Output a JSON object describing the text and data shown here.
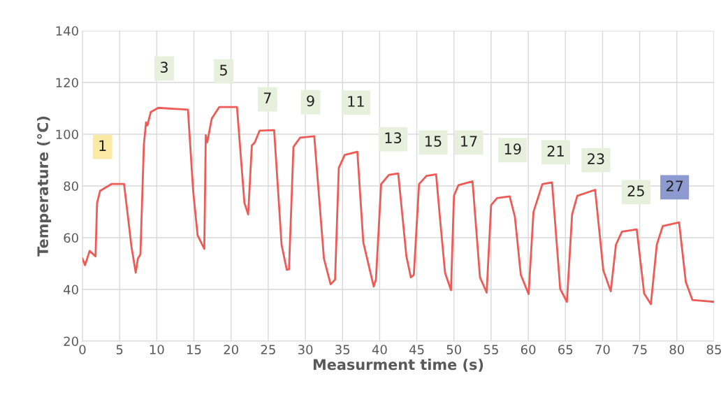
{
  "chart_data": {
    "type": "line",
    "xlabel": "Measurment time (s)",
    "ylabel": "Temperature (°C)",
    "xlim": [
      0,
      85
    ],
    "xticks": [
      0,
      5,
      10,
      15,
      20,
      25,
      30,
      35,
      40,
      45,
      50,
      55,
      60,
      65,
      70,
      75,
      80,
      85
    ],
    "ylim": [
      20,
      140
    ],
    "yticks": [
      20,
      40,
      60,
      80,
      100,
      120,
      140
    ],
    "grid": true,
    "marker": "none",
    "line_style": "solid",
    "series": [
      {
        "color": "#ee5a55",
        "x": [
          0,
          0.35,
          0.97,
          1.76,
          1.97,
          2.38,
          3.95,
          5.6,
          6.6,
          7.17,
          7.46,
          7.8,
          8.27,
          8.56,
          8.74,
          9.2,
          10.2,
          14.2,
          14.9,
          15.5,
          16.4,
          16.6,
          16.8,
          17.4,
          18.4,
          20.8,
          21.8,
          22.3,
          22.8,
          23.2,
          23.85,
          25.8,
          26.8,
          27.5,
          27.8,
          28.4,
          29.3,
          31.2,
          32.5,
          33.4,
          34.0,
          34.5,
          35.3,
          37.0,
          37.8,
          39.2,
          39.5,
          40.2,
          41.25,
          42.5,
          43.6,
          44.2,
          44.6,
          45.3,
          46.3,
          47.6,
          48.1,
          48.8,
          49.6,
          50.0,
          50.6,
          52.5,
          53.5,
          54.4,
          55.0,
          55.8,
          57.5,
          58.2,
          59.0,
          60.05,
          60.7,
          61.9,
          63.2,
          64.3,
          65.2,
          65.9,
          66.6,
          69.0,
          70.1,
          71.1,
          71.8,
          72.6,
          74.6,
          75.6,
          76.5,
          77.3,
          78.1,
          80.3,
          81.2,
          82.1,
          85.0
        ],
        "values": [
          51.9,
          49.4,
          54.9,
          52.8,
          73.5,
          78.1,
          80.8,
          80.8,
          56.5,
          46.5,
          51.9,
          53.5,
          96.0,
          104.6,
          103.4,
          108.6,
          110.2,
          109.5,
          78.1,
          60.9,
          55.7,
          99.6,
          96.9,
          106,
          110.5,
          110.5,
          73.5,
          69.0,
          95.6,
          96.9,
          101.4,
          101.6,
          57.3,
          47.6,
          47.8,
          95.1,
          98.7,
          99.2,
          51.9,
          42,
          43.8,
          87,
          92,
          93.2,
          58.2,
          41.1,
          43.8,
          80.7,
          84.3,
          84.8,
          52.8,
          44.7,
          45.6,
          80.7,
          83.9,
          84.5,
          68.1,
          46.5,
          39.7,
          76.2,
          80.3,
          81.8,
          44.7,
          38.8,
          72.6,
          75.3,
          76,
          68.1,
          45.6,
          38.2,
          69.9,
          80.7,
          81.4,
          40.2,
          35.2,
          69,
          76.2,
          78.5,
          47.4,
          39.3,
          57.3,
          62.3,
          63.2,
          38.4,
          34.3,
          57.3,
          64.5,
          65.9,
          42.9,
          35.9,
          35.2
        ]
      }
    ],
    "annotations": [
      {
        "text": "1",
        "x": 2.7,
        "y": 95.1
      },
      {
        "text": "3",
        "x": 11.0,
        "y": 125.4
      },
      {
        "text": "5",
        "x": 19.0,
        "y": 124.3
      },
      {
        "text": "7",
        "x": 24.9,
        "y": 113.5
      },
      {
        "text": "9",
        "x": 30.7,
        "y": 112.4
      },
      {
        "text": "11",
        "x": 36.8,
        "y": 112.2
      },
      {
        "text": "13",
        "x": 41.8,
        "y": 98.1
      },
      {
        "text": "15",
        "x": 47.2,
        "y": 96.8
      },
      {
        "text": "17",
        "x": 52.0,
        "y": 96.8
      },
      {
        "text": "19",
        "x": 57.9,
        "y": 93.8
      },
      {
        "text": "21",
        "x": 63.7,
        "y": 93.0
      },
      {
        "text": "23",
        "x": 69.1,
        "y": 90.0
      },
      {
        "text": "25",
        "x": 74.5,
        "y": 77.6
      },
      {
        "text": "27",
        "x": 79.7,
        "y": 79.5
      }
    ]
  }
}
